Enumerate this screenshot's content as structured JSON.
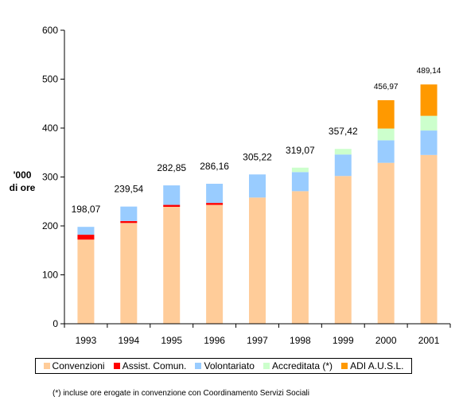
{
  "chart_data": {
    "type": "bar",
    "stacked": true,
    "ylabel": "'000 di ore",
    "ylabel_lines": [
      "'000",
      "di ore"
    ],
    "ylim": [
      0,
      600
    ],
    "yticks": [
      0,
      100,
      200,
      300,
      400,
      500,
      600
    ],
    "grid": false,
    "legend_position": "bottom",
    "categories": [
      "1993",
      "1994",
      "1995",
      "1996",
      "1997",
      "1998",
      "1999",
      "2000",
      "2001"
    ],
    "totals_labels": [
      "198,07",
      "239,54",
      "282,85",
      "286,16",
      "305,22",
      "319,07",
      "357,42",
      "456,97",
      "489,14"
    ],
    "totals": [
      198.07,
      239.54,
      282.85,
      286.16,
      305.22,
      319.07,
      357.42,
      456.97,
      489.14
    ],
    "series": [
      {
        "name": "Convenzioni",
        "color": "#ffcc99",
        "values": [
          172,
          206,
          239,
          243,
          258,
          271,
          302,
          329,
          345
        ]
      },
      {
        "name": "Assist. Comun.",
        "color": "#ff0000",
        "values": [
          10,
          4,
          4,
          4,
          0,
          0,
          0,
          0,
          0
        ]
      },
      {
        "name": "Volontariato",
        "color": "#99ccff",
        "values": [
          16.07,
          29.54,
          39.85,
          39.16,
          47.22,
          39.07,
          44,
          46,
          50
        ]
      },
      {
        "name": "Accreditata (*)",
        "color": "#ccffcc",
        "values": [
          0,
          0,
          0,
          0,
          0,
          9,
          11.42,
          24,
          30
        ]
      },
      {
        "name": "ADI A.U.S.L.",
        "color": "#ff9900",
        "values": [
          0,
          0,
          0,
          0,
          0,
          0,
          0,
          57.97,
          64.14
        ]
      }
    ],
    "footnote": "(*) incluse ore erogate in convenzione con Coordinamento Servizi Sociali"
  }
}
